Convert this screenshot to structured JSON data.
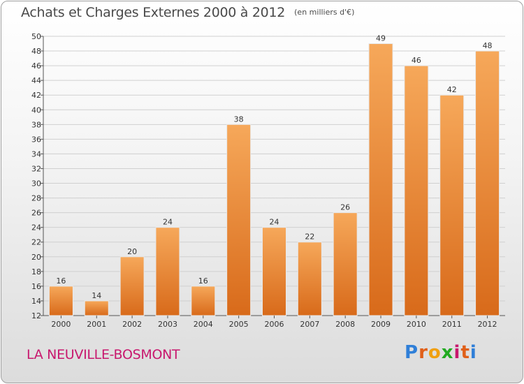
{
  "header": {
    "title": "Achats et Charges Externes 2000 à 2012",
    "subtitle": "(en milliers d'€)"
  },
  "footer": {
    "commune": "LA NEUVILLE-BOSMONT",
    "logo_letters": [
      "P",
      "r",
      "o",
      "x",
      "i",
      "t",
      "i"
    ]
  },
  "colors": {
    "bar_light": "#f6a85a",
    "bar_dark": "#d86a1a",
    "commune_text": "#c8186e"
  },
  "chart_data": {
    "type": "bar",
    "title": "Achats et Charges Externes 2000 à 2012",
    "subtitle": "(en milliers d'€)",
    "categories": [
      "2000",
      "2001",
      "2002",
      "2003",
      "2004",
      "2005",
      "2006",
      "2007",
      "2008",
      "2009",
      "2010",
      "2011",
      "2012"
    ],
    "values": [
      16,
      14,
      20,
      24,
      16,
      38,
      24,
      22,
      26,
      49,
      46,
      42,
      48
    ],
    "ylim": [
      12,
      50
    ],
    "ytick_step": 2,
    "grid": true,
    "legend": "none"
  }
}
